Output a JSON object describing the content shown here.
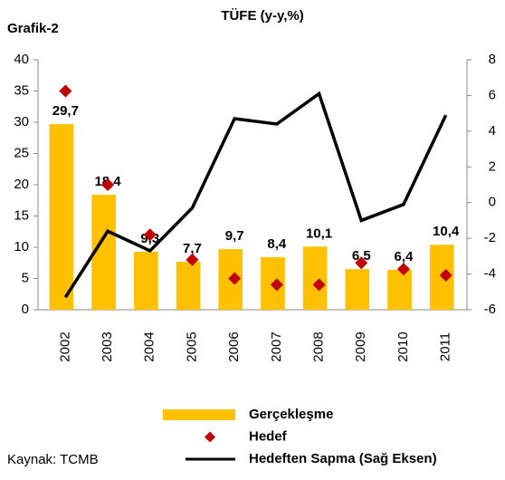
{
  "chart_data": {
    "type": "bar",
    "label": "Grafik-2",
    "title": "TÜFE (y-y,%)",
    "source": "Kaynak: TCMB",
    "categories": [
      "2002",
      "2003",
      "2004",
      "2005",
      "2006",
      "2007",
      "2008",
      "2009",
      "2010",
      "2011"
    ],
    "series": [
      {
        "name": "Gerçekleşme",
        "type": "bar",
        "color": "#FFC000",
        "values": [
          29.7,
          18.4,
          9.3,
          7.7,
          9.7,
          8.4,
          10.1,
          6.5,
          6.4,
          10.4
        ],
        "value_labels": [
          "29,7",
          "18,4",
          "9,3",
          "7,7",
          "9,7",
          "8,4",
          "10,1",
          "6,5",
          "6,4",
          "10,4"
        ]
      },
      {
        "name": "Hedef",
        "type": "marker",
        "color": "#C00000",
        "values": [
          35,
          20,
          12,
          8,
          5,
          4,
          4,
          7.5,
          6.5,
          5.5
        ]
      },
      {
        "name": "Hedeften Sapma (Sağ Eksen)",
        "type": "line",
        "axis": "y2",
        "color": "#000000",
        "values": [
          -5.3,
          -1.6,
          -2.7,
          -0.3,
          4.7,
          4.4,
          6.1,
          -1.0,
          -0.1,
          4.9
        ]
      }
    ],
    "ylim": [
      0,
      40
    ],
    "yticks": [
      0,
      5,
      10,
      15,
      20,
      25,
      30,
      35,
      40
    ],
    "y2lim": [
      -6,
      8
    ],
    "y2ticks": [
      -6,
      -4,
      -2,
      0,
      2,
      4,
      6,
      8
    ]
  }
}
